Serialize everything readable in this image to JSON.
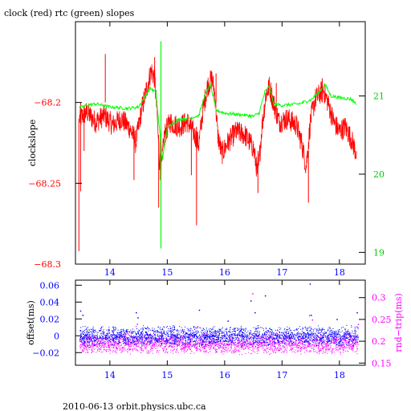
{
  "title": "clock (red) rtc (green) slopes",
  "footer": "2010-06-13 orbit.physics.ubc.ca",
  "colors": {
    "clock": "#ff0000",
    "rtc": "#00ff00",
    "offset": "#0000ff",
    "rndtrip": "#ff00ff",
    "axis": "#000000"
  },
  "chart_data": [
    {
      "type": "line",
      "title": "clock (red) rtc (green) slopes",
      "ylabel": "clockslope",
      "xlim": [
        13.4,
        18.45
      ],
      "ylim": [
        -68.3,
        -68.15
      ],
      "y2lim": [
        18.85,
        21.95
      ],
      "xticks": [
        14,
        15,
        16,
        17,
        18
      ],
      "yticks": [
        -68.3,
        -68.25,
        -68.2
      ],
      "ytick_labels": [
        "−68.3",
        "−68.25",
        "−68.2"
      ],
      "y2ticks": [
        19,
        20,
        21
      ],
      "series": [
        {
          "name": "clock",
          "axis": "left",
          "x": [
            13.47,
            13.6,
            13.75,
            13.9,
            14.05,
            14.2,
            14.35,
            14.45,
            14.55,
            14.65,
            14.72,
            14.78,
            14.82,
            14.86,
            14.9,
            14.95,
            15.05,
            15.2,
            15.35,
            15.45,
            15.55,
            15.62,
            15.7,
            15.78,
            15.83,
            15.88,
            15.95,
            16.05,
            16.2,
            16.35,
            16.5,
            16.58,
            16.65,
            16.72,
            16.78,
            16.85,
            16.95,
            17.1,
            17.25,
            17.35,
            17.42,
            17.5,
            17.58,
            17.65,
            17.72,
            17.8,
            17.9,
            18.0,
            18.1,
            18.2,
            18.3
          ],
          "y": [
            -68.21,
            -68.206,
            -68.212,
            -68.208,
            -68.214,
            -68.21,
            -68.216,
            -68.225,
            -68.205,
            -68.19,
            -68.18,
            -68.185,
            -68.205,
            -68.235,
            -68.24,
            -68.22,
            -68.212,
            -68.215,
            -68.212,
            -68.218,
            -68.226,
            -68.205,
            -68.19,
            -68.185,
            -68.195,
            -68.22,
            -68.232,
            -68.225,
            -68.218,
            -68.22,
            -68.228,
            -68.245,
            -68.215,
            -68.195,
            -68.19,
            -68.2,
            -68.212,
            -68.21,
            -68.214,
            -68.226,
            -68.24,
            -68.21,
            -68.198,
            -68.195,
            -68.192,
            -68.2,
            -68.212,
            -68.218,
            -68.215,
            -68.222,
            -68.232
          ]
        },
        {
          "name": "rtc",
          "axis": "right",
          "x": [
            13.47,
            13.6,
            13.75,
            14.0,
            14.3,
            14.5,
            14.7,
            14.8,
            14.86,
            14.92,
            15.0,
            15.2,
            15.4,
            15.55,
            15.65,
            15.75,
            15.85,
            16.0,
            16.3,
            16.5,
            16.6,
            16.7,
            16.78,
            16.85,
            17.0,
            17.3,
            17.5,
            17.65,
            17.75,
            17.85,
            18.0,
            18.2,
            18.3
          ],
          "y": [
            20.85,
            20.88,
            20.9,
            20.86,
            20.84,
            20.86,
            21.1,
            21.05,
            20.6,
            20.2,
            20.6,
            20.7,
            20.72,
            20.75,
            21.0,
            21.15,
            20.82,
            20.78,
            20.76,
            20.74,
            20.78,
            21.05,
            21.12,
            20.9,
            20.88,
            20.9,
            20.95,
            21.05,
            21.15,
            21.0,
            20.98,
            20.96,
            20.9
          ]
        }
      ],
      "spikes": [
        {
          "x": 13.46,
          "y1": -68.21,
          "y2": -68.292
        },
        {
          "x": 13.49,
          "y1": -68.2,
          "y2": -68.255
        },
        {
          "x": 13.55,
          "y1": -68.21,
          "y2": -68.23
        },
        {
          "x": 13.92,
          "y1": -68.2,
          "y2": -68.17
        },
        {
          "x": 14.42,
          "y1": -68.215,
          "y2": -68.248
        },
        {
          "x": 14.78,
          "y1": -68.19,
          "y2": -68.172
        },
        {
          "x": 14.85,
          "y1": -68.22,
          "y2": -68.265
        },
        {
          "x": 14.88,
          "y1": -68.22,
          "y2": -68.248
        },
        {
          "x": 15.42,
          "y1": -68.215,
          "y2": -68.245
        },
        {
          "x": 15.51,
          "y1": -68.215,
          "y2": -68.276
        },
        {
          "x": 15.85,
          "y1": -68.2,
          "y2": -68.182
        },
        {
          "x": 16.58,
          "y1": -68.23,
          "y2": -68.256
        },
        {
          "x": 16.9,
          "y1": -68.205,
          "y2": -68.188
        },
        {
          "x": 17.46,
          "y1": -68.23,
          "y2": -68.262
        },
        {
          "x": 17.7,
          "y1": -68.2,
          "y2": -68.185
        }
      ],
      "rtc_spike": {
        "x": 14.89,
        "y1": 19.05,
        "y2": 21.7
      }
    },
    {
      "type": "scatter",
      "ylabel": "offset(ms)",
      "y2label": "rnd−trip(ms)",
      "xlim": [
        13.4,
        18.45
      ],
      "ylim": [
        -0.035,
        0.066
      ],
      "y2lim": [
        0.145,
        0.34
      ],
      "xticks": [
        14,
        15,
        16,
        17,
        18
      ],
      "yticks": [
        -0.02,
        0,
        0.02,
        0.04,
        0.06
      ],
      "ytick_labels": [
        "−0.02",
        "0",
        "0.02",
        "0.04",
        "0.06"
      ],
      "y2ticks": [
        0.15,
        0.2,
        0.25,
        0.3
      ],
      "series": [
        {
          "name": "offset",
          "axis": "left",
          "band_center": 0.0,
          "band_halfwidth": 0.01
        },
        {
          "name": "rnd-trip",
          "axis": "right",
          "band_center": 0.195,
          "band_halfwidth": 0.018
        }
      ],
      "outliers_offset": [
        {
          "x": 13.48,
          "y": 0.03
        },
        {
          "x": 13.52,
          "y": 0.025
        },
        {
          "x": 14.45,
          "y": 0.028
        },
        {
          "x": 14.48,
          "y": 0.022
        },
        {
          "x": 15.55,
          "y": 0.031
        },
        {
          "x": 16.05,
          "y": 0.018
        },
        {
          "x": 16.45,
          "y": 0.042
        },
        {
          "x": 16.52,
          "y": 0.028
        },
        {
          "x": 16.7,
          "y": 0.048
        },
        {
          "x": 17.48,
          "y": 0.062
        },
        {
          "x": 17.5,
          "y": 0.025
        },
        {
          "x": 17.95,
          "y": 0.02
        },
        {
          "x": 18.3,
          "y": 0.028
        }
      ],
      "outliers_rndtrip": [
        {
          "x": 14.47,
          "y": 0.24
        },
        {
          "x": 15.52,
          "y": 0.235
        },
        {
          "x": 16.48,
          "y": 0.31
        },
        {
          "x": 17.47,
          "y": 0.26
        },
        {
          "x": 17.52,
          "y": 0.25
        },
        {
          "x": 18.32,
          "y": 0.24
        }
      ]
    }
  ]
}
